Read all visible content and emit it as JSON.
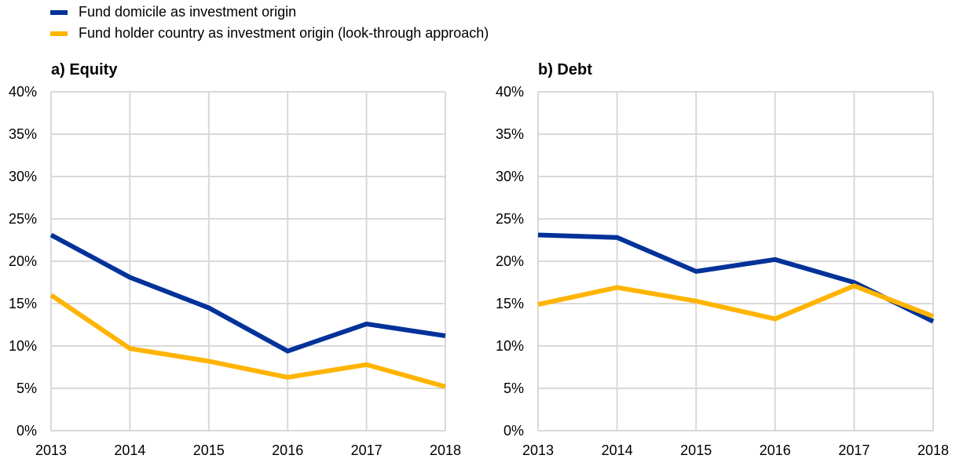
{
  "legend": {
    "items": [
      {
        "label": "Fund domicile as investment origin",
        "color": "#003299"
      },
      {
        "label": "Fund holder country as investment origin (look-through approach)",
        "color": "#FFB400"
      }
    ]
  },
  "chart_data": [
    {
      "type": "line",
      "title": "a) Equity",
      "xlabel": "",
      "ylabel": "",
      "categories": [
        "2013",
        "2014",
        "2015",
        "2016",
        "2017",
        "2018"
      ],
      "ylim": [
        0,
        40
      ],
      "yticks": [
        "0%",
        "5%",
        "10%",
        "15%",
        "20%",
        "25%",
        "30%",
        "35%",
        "40%"
      ],
      "grid": true,
      "legend_position": "top-left",
      "series": [
        {
          "name": "Fund domicile as investment origin",
          "color": "#003299",
          "values": [
            23.1,
            18.1,
            14.5,
            9.4,
            12.6,
            11.2
          ]
        },
        {
          "name": "Fund holder country as investment origin (look-through approach)",
          "color": "#FFB400",
          "values": [
            16.0,
            9.7,
            8.2,
            6.3,
            7.8,
            5.2
          ]
        }
      ]
    },
    {
      "type": "line",
      "title": "b) Debt",
      "xlabel": "",
      "ylabel": "",
      "categories": [
        "2013",
        "2014",
        "2015",
        "2016",
        "2017",
        "2018"
      ],
      "ylim": [
        0,
        40
      ],
      "yticks": [
        "0%",
        "5%",
        "10%",
        "15%",
        "20%",
        "25%",
        "30%",
        "35%",
        "40%"
      ],
      "grid": true,
      "legend_position": "top-left",
      "series": [
        {
          "name": "Fund domicile as investment origin",
          "color": "#003299",
          "values": [
            23.1,
            22.8,
            18.8,
            20.2,
            17.5,
            12.9
          ]
        },
        {
          "name": "Fund holder country as investment origin (look-through approach)",
          "color": "#FFB400",
          "values": [
            14.9,
            16.9,
            15.3,
            13.2,
            17.1,
            13.5
          ]
        }
      ]
    }
  ]
}
